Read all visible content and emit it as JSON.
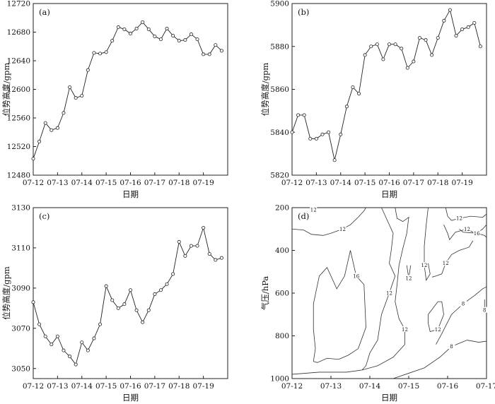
{
  "chart_data": [
    {
      "type": "line",
      "panel_label": "(a)",
      "xlabel": "日期",
      "ylabel": "位势高度/gpm",
      "categories": [
        "07-12",
        "07-13",
        "07-14",
        "07-15",
        "07-16",
        "07-17",
        "07-18",
        "07-19"
      ],
      "ylim": [
        12480,
        12720
      ],
      "yticks": [
        12480,
        12520,
        12560,
        12600,
        12640,
        12680,
        12720
      ],
      "x": [
        0,
        0.25,
        0.5,
        0.75,
        1,
        1.25,
        1.5,
        1.75,
        2,
        2.25,
        2.5,
        2.75,
        3,
        3.25,
        3.5,
        3.75,
        4,
        4.25,
        4.5,
        4.75,
        5,
        5.25,
        5.5,
        5.75,
        6,
        6.25,
        6.5,
        6.75,
        7,
        7.25,
        7.5,
        7.75
      ],
      "values": [
        12503,
        12527,
        12553,
        12543,
        12546,
        12567,
        12603,
        12588,
        12591,
        12627,
        12651,
        12650,
        12652,
        12668,
        12687,
        12684,
        12678,
        12685,
        12694,
        12684,
        12674,
        12670,
        12685,
        12675,
        12668,
        12669,
        12677,
        12670,
        12649,
        12649,
        12662,
        12654
      ]
    },
    {
      "type": "line",
      "panel_label": "(b)",
      "xlabel": "日期",
      "ylabel": "位势高度/gpm",
      "categories": [
        "07-12",
        "07-13",
        "07-14",
        "07-15",
        "07-16",
        "07-17",
        "07-18",
        "07-19"
      ],
      "ylim": [
        5820,
        5900
      ],
      "yticks": [
        5820,
        5840,
        5860,
        5880,
        5900
      ],
      "x": [
        0,
        0.25,
        0.5,
        0.75,
        1,
        1.25,
        1.5,
        1.75,
        2,
        2.25,
        2.5,
        2.75,
        3,
        3.25,
        3.5,
        3.75,
        4,
        4.25,
        4.5,
        4.75,
        5,
        5.25,
        5.5,
        5.75,
        6,
        6.25,
        6.5,
        6.75,
        7,
        7.25,
        7.5,
        7.75
      ],
      "values": [
        5840,
        5848,
        5848,
        5837,
        5837,
        5839,
        5840,
        5827,
        5839,
        5852,
        5861,
        5858,
        5876,
        5880,
        5881,
        5874,
        5881,
        5881,
        5879,
        5870,
        5873,
        5884,
        5883,
        5876,
        5884,
        5892,
        5897,
        5885,
        5888,
        5889,
        5891,
        5880
      ]
    },
    {
      "type": "line",
      "panel_label": "(c)",
      "xlabel": "日期",
      "ylabel": "位势高度/gpm",
      "categories": [
        "07-12",
        "07-13",
        "07-14",
        "07-15",
        "07-16",
        "07-17",
        "07-18",
        "07-19"
      ],
      "ylim": [
        3045,
        3130
      ],
      "yticks": [
        3050,
        3070,
        3090,
        3110,
        3130
      ],
      "x": [
        0,
        0.25,
        0.5,
        0.75,
        1,
        1.25,
        1.5,
        1.75,
        2,
        2.25,
        2.5,
        2.75,
        3,
        3.25,
        3.5,
        3.75,
        4,
        4.25,
        4.5,
        4.75,
        5,
        5.25,
        5.5,
        5.75,
        6,
        6.25,
        6.5,
        6.75,
        7,
        7.25,
        7.5,
        7.75
      ],
      "values": [
        3083,
        3072,
        3066,
        3062,
        3066,
        3059,
        3056,
        3052,
        3063,
        3059,
        3065,
        3072,
        3091,
        3084,
        3080,
        3082,
        3089,
        3079,
        3073,
        3079,
        3087,
        3089,
        3092,
        3097,
        3113,
        3106,
        3111,
        3111,
        3120,
        3107,
        3104,
        3105
      ]
    },
    {
      "type": "contour",
      "panel_label": "(d)",
      "xlabel": "日期",
      "ylabel": "气压/hPa",
      "categories": [
        "07-12",
        "07-13",
        "07-14",
        "07-15",
        "07-16",
        "07-17"
      ],
      "ylim": [
        1000,
        200
      ],
      "yticks": [
        200,
        400,
        600,
        800,
        1000
      ],
      "contours": [
        {
          "level": 12,
          "points": [
            [
              0.5,
              200
            ],
            [
              0.55,
              210
            ],
            [
              0.6,
              200
            ]
          ]
        },
        {
          "level": 12,
          "points": [
            [
              0,
              300
            ],
            [
              0.3,
              305
            ],
            [
              0.5,
              325
            ],
            [
              0.8,
              330
            ],
            [
              1,
              320
            ],
            [
              1.3,
              300
            ],
            [
              1.5,
              280
            ],
            [
              1.7,
              245
            ],
            [
              1.85,
              215
            ],
            [
              1.9,
              200
            ]
          ]
        },
        {
          "level": 12,
          "points": [
            [
              2.65,
              200
            ],
            [
              2.7,
              250
            ],
            [
              2.85,
              265
            ],
            [
              3.0,
              245
            ],
            [
              2.95,
              320
            ],
            [
              2.85,
              390
            ],
            [
              2.75,
              470
            ],
            [
              2.7,
              560
            ],
            [
              2.65,
              640
            ],
            [
              2.75,
              720
            ],
            [
              2.9,
              770
            ],
            [
              2.9,
              840
            ],
            [
              2.6,
              900
            ],
            [
              2.2,
              940
            ],
            [
              1.8,
              960
            ],
            [
              1.4,
              970
            ],
            [
              0.95,
              970
            ],
            [
              0.7,
              970
            ],
            [
              0.35,
              975
            ],
            [
              0,
              980
            ]
          ]
        },
        {
          "level": 12,
          "points": [
            [
              3.5,
              200
            ],
            [
              3.45,
              280
            ],
            [
              3.4,
              380
            ],
            [
              3.4,
              470
            ],
            [
              3.45,
              540
            ],
            [
              3.55,
              510
            ],
            [
              3.5,
              460
            ]
          ]
        },
        {
          "level": 12,
          "points": [
            [
              2.95,
              470
            ],
            [
              3.0,
              530
            ],
            [
              3.05,
              470
            ]
          ]
        },
        {
          "level": 12,
          "points": [
            [
              3.9,
              280
            ],
            [
              4.0,
              320
            ],
            [
              4.05,
              350
            ],
            [
              4.2,
              315
            ],
            [
              4.5,
              300
            ],
            [
              4.65,
              315
            ],
            [
              4.75,
              320
            ],
            [
              4.9,
              300
            ],
            [
              5,
              280
            ]
          ]
        },
        {
          "level": 12,
          "points": [
            [
              3.95,
              200
            ],
            [
              4.0,
              240
            ],
            [
              4.1,
              260
            ],
            [
              4.3,
              250
            ],
            [
              4.6,
              240
            ],
            [
              4.9,
              245
            ],
            [
              5,
              230
            ]
          ]
        },
        {
          "level": 12,
          "points": [
            [
              3.5,
              700
            ],
            [
              3.75,
              640
            ],
            [
              3.85,
              640
            ],
            [
              3.9,
              700
            ],
            [
              3.75,
              770
            ],
            [
              3.55,
              780
            ],
            [
              3.5,
              740
            ],
            [
              3.5,
              700
            ]
          ]
        },
        {
          "level": 16,
          "points": [
            [
              4.3,
              300
            ],
            [
              4.4,
              315
            ],
            [
              4.75,
              320
            ],
            [
              4.95,
              330
            ],
            [
              5,
              340
            ]
          ]
        },
        {
          "level": 16,
          "points": [
            [
              0.55,
              920
            ],
            [
              0.6,
              860
            ],
            [
              0.55,
              770
            ],
            [
              0.55,
              650
            ],
            [
              0.7,
              520
            ],
            [
              0.9,
              480
            ],
            [
              1.15,
              580
            ],
            [
              1.35,
              520
            ],
            [
              1.5,
              400
            ],
            [
              1.65,
              520
            ],
            [
              1.85,
              560
            ],
            [
              1.9,
              760
            ],
            [
              1.7,
              860
            ],
            [
              1.45,
              890
            ],
            [
              1.2,
              910
            ],
            [
              0.9,
              905
            ],
            [
              0.65,
              925
            ],
            [
              0.55,
              920
            ]
          ]
        },
        {
          "level": 12,
          "points": [
            [
              2.3,
              200
            ],
            [
              2.6,
              320
            ],
            [
              2.55,
              400
            ],
            [
              2.5,
              460
            ],
            [
              2.65,
              520
            ],
            [
              2.5,
              600
            ],
            [
              2.3,
              700
            ],
            [
              2.2,
              820
            ],
            [
              2.0,
              880
            ],
            [
              1.9,
              940
            ],
            [
              1.8,
              960
            ]
          ]
        },
        {
          "level": 12,
          "points": [
            [
              4.65,
              355
            ],
            [
              4.55,
              385
            ],
            [
              4.3,
              400
            ],
            [
              4.1,
              420
            ],
            [
              3.95,
              460
            ],
            [
              3.85,
              510
            ],
            [
              3.7,
              520
            ],
            [
              3.6,
              525
            ]
          ]
        },
        {
          "level": 8,
          "points": [
            [
              2.6,
              1000
            ],
            [
              3.0,
              975
            ],
            [
              3.4,
              950
            ],
            [
              3.8,
              900
            ],
            [
              4.1,
              850
            ],
            [
              4.5,
              820
            ],
            [
              4.8,
              830
            ],
            [
              5,
              825
            ]
          ]
        },
        {
          "level": 8,
          "points": [
            [
              3.7,
              840
            ],
            [
              3.85,
              790
            ],
            [
              4.1,
              700
            ],
            [
              4.4,
              650
            ],
            [
              4.7,
              610
            ],
            [
              4.9,
              580
            ],
            [
              5,
              570
            ]
          ]
        },
        {
          "level": 8,
          "points": [
            [
              4.95,
              630
            ],
            [
              4.95,
              680
            ],
            [
              5,
              690
            ]
          ]
        }
      ]
    }
  ]
}
